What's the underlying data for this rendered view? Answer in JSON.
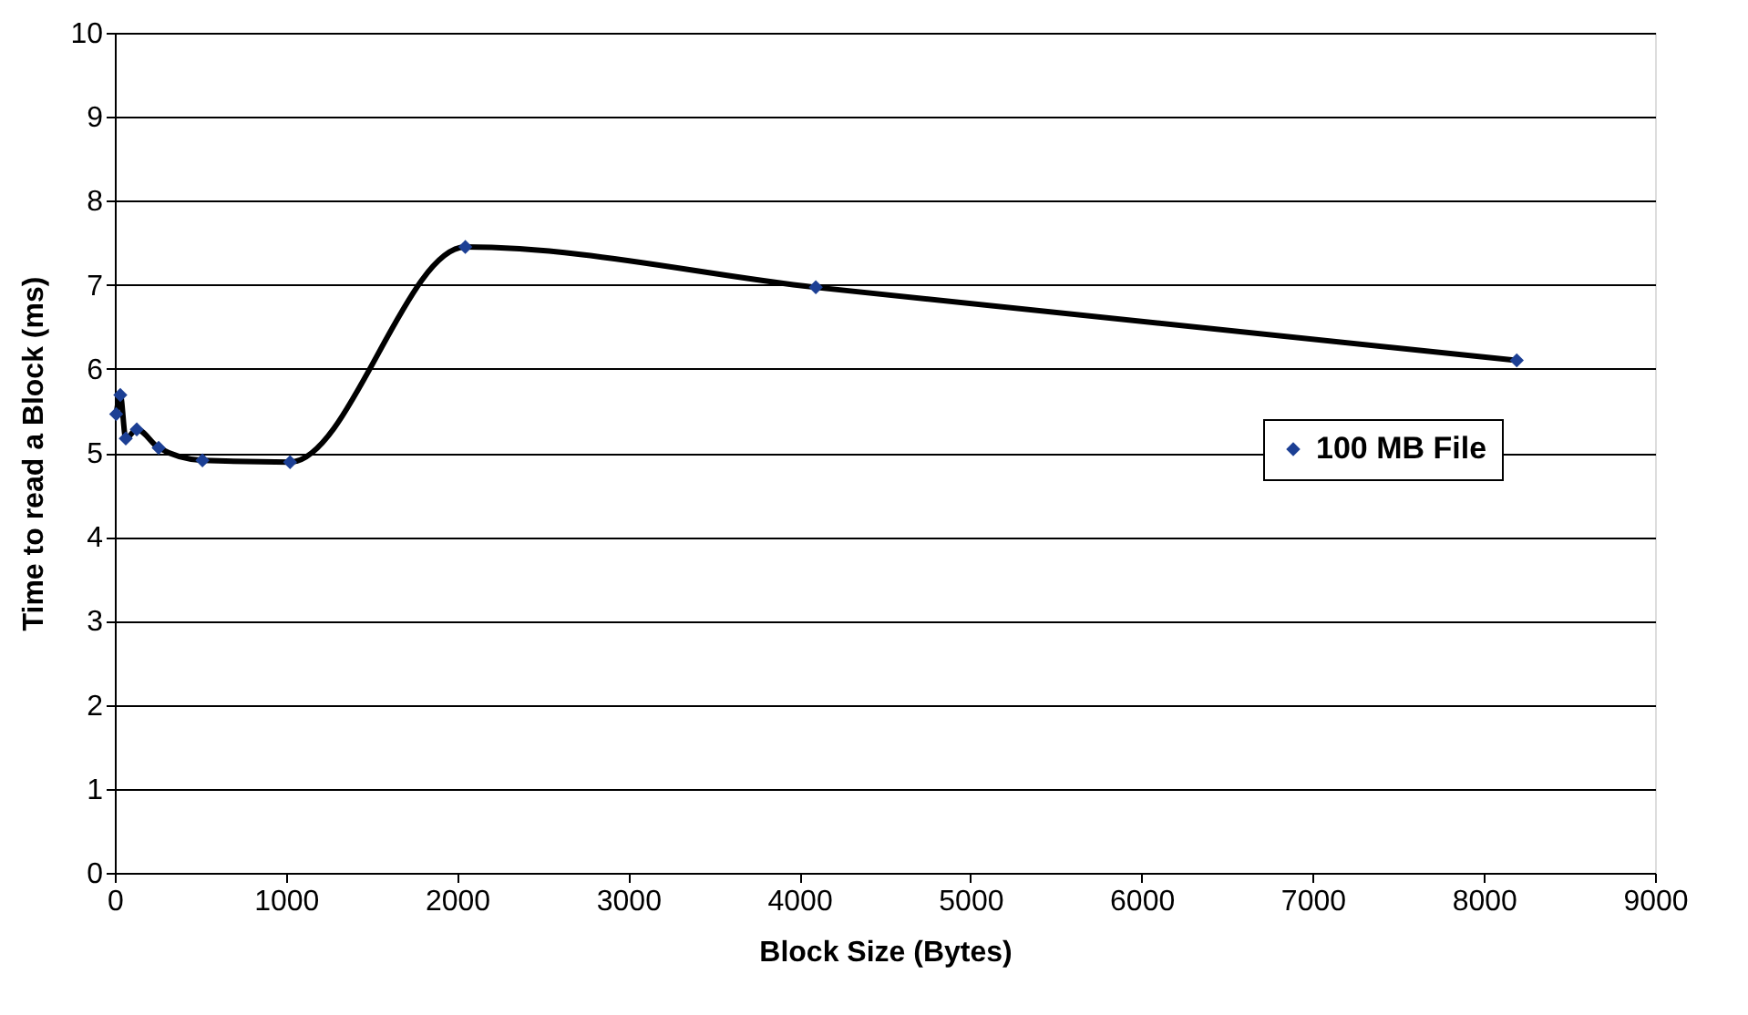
{
  "chart_data": {
    "type": "line",
    "xlabel": "Block Size (Bytes)",
    "ylabel": "Time to read a Block (ms)",
    "x": [
      8,
      32,
      64,
      128,
      256,
      512,
      1024,
      2048,
      4096,
      8192
    ],
    "series": [
      {
        "name": "100 MB File",
        "color": "#1c3f94",
        "values": [
          5.46,
          5.69,
          5.17,
          5.28,
          5.06,
          4.91,
          4.89,
          7.45,
          6.97,
          6.1
        ]
      }
    ],
    "xlim": [
      0,
      9000
    ],
    "xticks": [
      0,
      1000,
      2000,
      3000,
      4000,
      5000,
      6000,
      7000,
      8000,
      9000
    ],
    "ylim": [
      0,
      10
    ],
    "yticks": [
      0,
      1,
      2,
      3,
      4,
      5,
      6,
      7,
      8,
      9,
      10
    ],
    "grid": "y",
    "legend": "right",
    "marker": "diamond",
    "line_style": "solid"
  }
}
